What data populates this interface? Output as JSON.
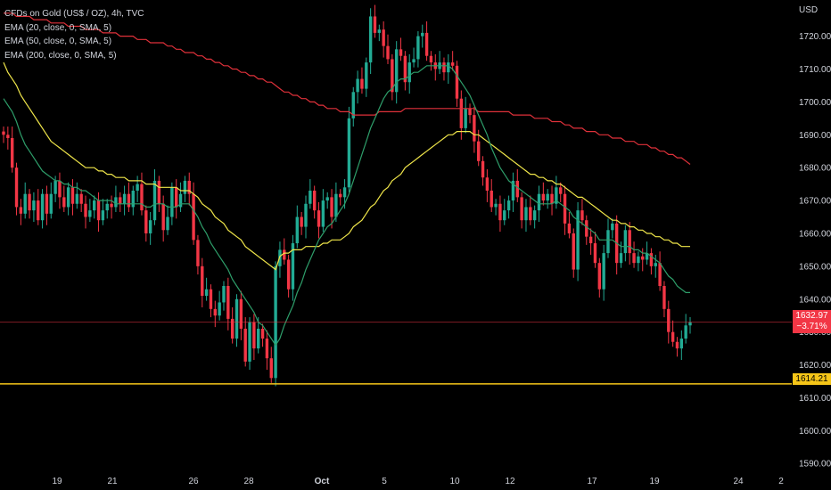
{
  "legend": {
    "title": "CFDs on Gold (US$ / OZ), 4h, TVC",
    "ema1": "EMA (20, close, 0, SMA, 5)",
    "ema2": "EMA (50, close, 0, SMA, 5)",
    "ema3": "EMA (200, close, 0, SMA, 5)"
  },
  "currency": "USD",
  "price_tag": {
    "value": "1632.97",
    "change": "−3.71%"
  },
  "level_tag": {
    "value": "1614.21"
  },
  "colors": {
    "up": "#22ab94",
    "down": "#f23645",
    "ema20": "#2e9e6a",
    "ema50": "#f0e64a",
    "ema200": "#e0313a",
    "level": "#f5c518"
  },
  "chart_data": {
    "type": "candlestick",
    "y_ticks": [
      1590,
      1600,
      1610,
      1620,
      1630,
      1640,
      1650,
      1660,
      1670,
      1680,
      1690,
      1700,
      1710,
      1720
    ],
    "y_tick_labels": [
      "1590.00",
      "1600.00",
      "1610.00",
      "1620.00",
      "1630.00",
      "1640.00",
      "1650.00",
      "1660.00",
      "1670.00",
      "1680.00",
      "1690.00",
      "1700.00",
      "1710.00",
      "1720.00"
    ],
    "ylim": [
      1586,
      1731
    ],
    "x_tick_labels": [
      "19",
      "21",
      "26",
      "28",
      "Oct",
      "5",
      "10",
      "12",
      "17",
      "19",
      "24",
      "2"
    ],
    "last_price": 1632.97,
    "horizontal_level": 1614.21,
    "candle_closes": [
      1690,
      1689,
      1680,
      1668,
      1666,
      1672,
      1667,
      1670,
      1664,
      1672,
      1666,
      1672,
      1676,
      1671,
      1668,
      1674,
      1669,
      1672,
      1669,
      1665,
      1667,
      1670,
      1664,
      1667,
      1669,
      1668,
      1671,
      1669,
      1672,
      1668,
      1673,
      1675,
      1667,
      1660,
      1664,
      1676,
      1669,
      1661,
      1665,
      1674,
      1668,
      1672,
      1676,
      1672,
      1658,
      1650,
      1641,
      1643,
      1637,
      1635,
      1639,
      1644,
      1634,
      1628,
      1640,
      1631,
      1621,
      1633,
      1625,
      1631,
      1628,
      1622,
      1616,
      1650,
      1655,
      1652,
      1643,
      1657,
      1665,
      1662,
      1669,
      1673,
      1667,
      1662,
      1670,
      1671,
      1665,
      1672,
      1671,
      1674,
      1695,
      1703,
      1707,
      1704,
      1712,
      1726,
      1721,
      1722,
      1717,
      1713,
      1703,
      1716,
      1714,
      1706,
      1712,
      1713,
      1720,
      1721,
      1714,
      1712,
      1710,
      1712,
      1709,
      1712,
      1711,
      1701,
      1692,
      1698,
      1696,
      1688,
      1682,
      1677,
      1673,
      1668,
      1669,
      1664,
      1667,
      1670,
      1676,
      1671,
      1664,
      1668,
      1664,
      1667,
      1672,
      1670,
      1672,
      1669,
      1674,
      1672,
      1663,
      1660,
      1649,
      1667,
      1664,
      1659,
      1657,
      1651,
      1643,
      1654,
      1661,
      1663,
      1651,
      1654,
      1661,
      1654,
      1651,
      1653,
      1652,
      1654,
      1650,
      1651,
      1644,
      1637,
      1630,
      1627,
      1625,
      1628,
      1632,
      1633
    ],
    "ema20": [
      1701,
      1699,
      1697,
      1694,
      1690,
      1687,
      1685,
      1683,
      1681,
      1679,
      1678,
      1677,
      1676,
      1676,
      1675,
      1675,
      1674,
      1674,
      1673,
      1673,
      1672,
      1671,
      1670,
      1670,
      1670,
      1670,
      1669,
      1669,
      1669,
      1669,
      1669,
      1669,
      1669,
      1668,
      1668,
      1669,
      1669,
      1669,
      1668,
      1668,
      1668,
      1669,
      1669,
      1669,
      1667,
      1665,
      1662,
      1660,
      1657,
      1655,
      1653,
      1651,
      1649,
      1646,
      1644,
      1642,
      1640,
      1638,
      1636,
      1633,
      1632,
      1630,
      1628,
      1626,
      1628,
      1632,
      1635,
      1638,
      1642,
      1645,
      1649,
      1652,
      1655,
      1658,
      1660,
      1662,
      1663,
      1665,
      1667,
      1669,
      1672,
      1676,
      1680,
      1684,
      1688,
      1692,
      1695,
      1698,
      1701,
      1703,
      1704,
      1706,
      1707,
      1707,
      1708,
      1709,
      1709,
      1710,
      1711,
      1711,
      1711,
      1711,
      1711,
      1711,
      1710,
      1708,
      1706,
      1704,
      1702,
      1699,
      1696,
      1693,
      1690,
      1686,
      1683,
      1680,
      1678,
      1676,
      1675,
      1674,
      1673,
      1672,
      1671,
      1670,
      1669,
      1669,
      1669,
      1669,
      1670,
      1669,
      1668,
      1667,
      1665,
      1664,
      1663,
      1662,
      1661,
      1660,
      1658,
      1658,
      1658,
      1658,
      1657,
      1656,
      1656,
      1656,
      1655,
      1655,
      1654,
      1654,
      1653,
      1652,
      1651,
      1649,
      1647,
      1646,
      1644,
      1643,
      1642,
      1642
    ],
    "ema50": [
      1712,
      1709,
      1707,
      1705,
      1702,
      1700,
      1698,
      1696,
      1694,
      1692,
      1690,
      1688,
      1687,
      1686,
      1685,
      1684,
      1683,
      1682,
      1681,
      1680,
      1680,
      1680,
      1679,
      1679,
      1678,
      1678,
      1677,
      1677,
      1677,
      1676,
      1676,
      1676,
      1676,
      1675,
      1675,
      1675,
      1674,
      1674,
      1674,
      1674,
      1674,
      1673,
      1673,
      1673,
      1672,
      1671,
      1669,
      1668,
      1667,
      1665,
      1664,
      1663,
      1661,
      1660,
      1659,
      1658,
      1656,
      1655,
      1654,
      1653,
      1652,
      1651,
      1650,
      1649,
      1653,
      1654,
      1654,
      1655,
      1655,
      1655,
      1656,
      1656,
      1656,
      1656,
      1657,
      1657,
      1658,
      1658,
      1658,
      1659,
      1660,
      1662,
      1663,
      1664,
      1666,
      1668,
      1669,
      1671,
      1673,
      1674,
      1676,
      1677,
      1678,
      1680,
      1681,
      1682,
      1683,
      1684,
      1685,
      1686,
      1687,
      1688,
      1689,
      1690,
      1690,
      1691,
      1691,
      1691,
      1691,
      1690,
      1690,
      1689,
      1688,
      1687,
      1686,
      1685,
      1684,
      1683,
      1682,
      1681,
      1680,
      1679,
      1678,
      1678,
      1677,
      1677,
      1676,
      1676,
      1675,
      1675,
      1674,
      1673,
      1672,
      1671,
      1671,
      1670,
      1669,
      1668,
      1667,
      1666,
      1665,
      1664,
      1664,
      1663,
      1663,
      1662,
      1662,
      1661,
      1661,
      1660,
      1660,
      1659,
      1659,
      1658,
      1658,
      1657,
      1657,
      1656,
      1656,
      1656
    ],
    "ema200": [
      1727,
      1727,
      1727,
      1726,
      1726,
      1726,
      1726,
      1725,
      1725,
      1725,
      1725,
      1724,
      1724,
      1724,
      1724,
      1723,
      1723,
      1723,
      1723,
      1722,
      1722,
      1722,
      1722,
      1721,
      1721,
      1721,
      1721,
      1720,
      1720,
      1720,
      1720,
      1719,
      1719,
      1719,
      1718,
      1718,
      1718,
      1718,
      1717,
      1717,
      1716,
      1716,
      1715,
      1715,
      1715,
      1714,
      1714,
      1713,
      1713,
      1712,
      1712,
      1711,
      1711,
      1710,
      1710,
      1709,
      1709,
      1708,
      1708,
      1707,
      1707,
      1706,
      1706,
      1705,
      1704,
      1703,
      1703,
      1702,
      1702,
      1701,
      1701,
      1700,
      1700,
      1699,
      1699,
      1698,
      1698,
      1698,
      1697,
      1697,
      1697,
      1696,
      1696,
      1696,
      1696,
      1696,
      1696,
      1697,
      1697,
      1697,
      1697,
      1697,
      1697,
      1698,
      1698,
      1698,
      1698,
      1698,
      1698,
      1698,
      1698,
      1698,
      1698,
      1698,
      1698,
      1698,
      1698,
      1698,
      1698,
      1698,
      1697,
      1697,
      1697,
      1697,
      1697,
      1697,
      1697,
      1697,
      1696,
      1696,
      1696,
      1696,
      1696,
      1695,
      1695,
      1695,
      1695,
      1694,
      1694,
      1694,
      1693,
      1693,
      1692,
      1692,
      1692,
      1691,
      1691,
      1691,
      1690,
      1690,
      1690,
      1689,
      1689,
      1689,
      1688,
      1688,
      1688,
      1687,
      1687,
      1687,
      1686,
      1686,
      1685,
      1685,
      1684,
      1684,
      1683,
      1683,
      1682,
      1681
    ]
  }
}
